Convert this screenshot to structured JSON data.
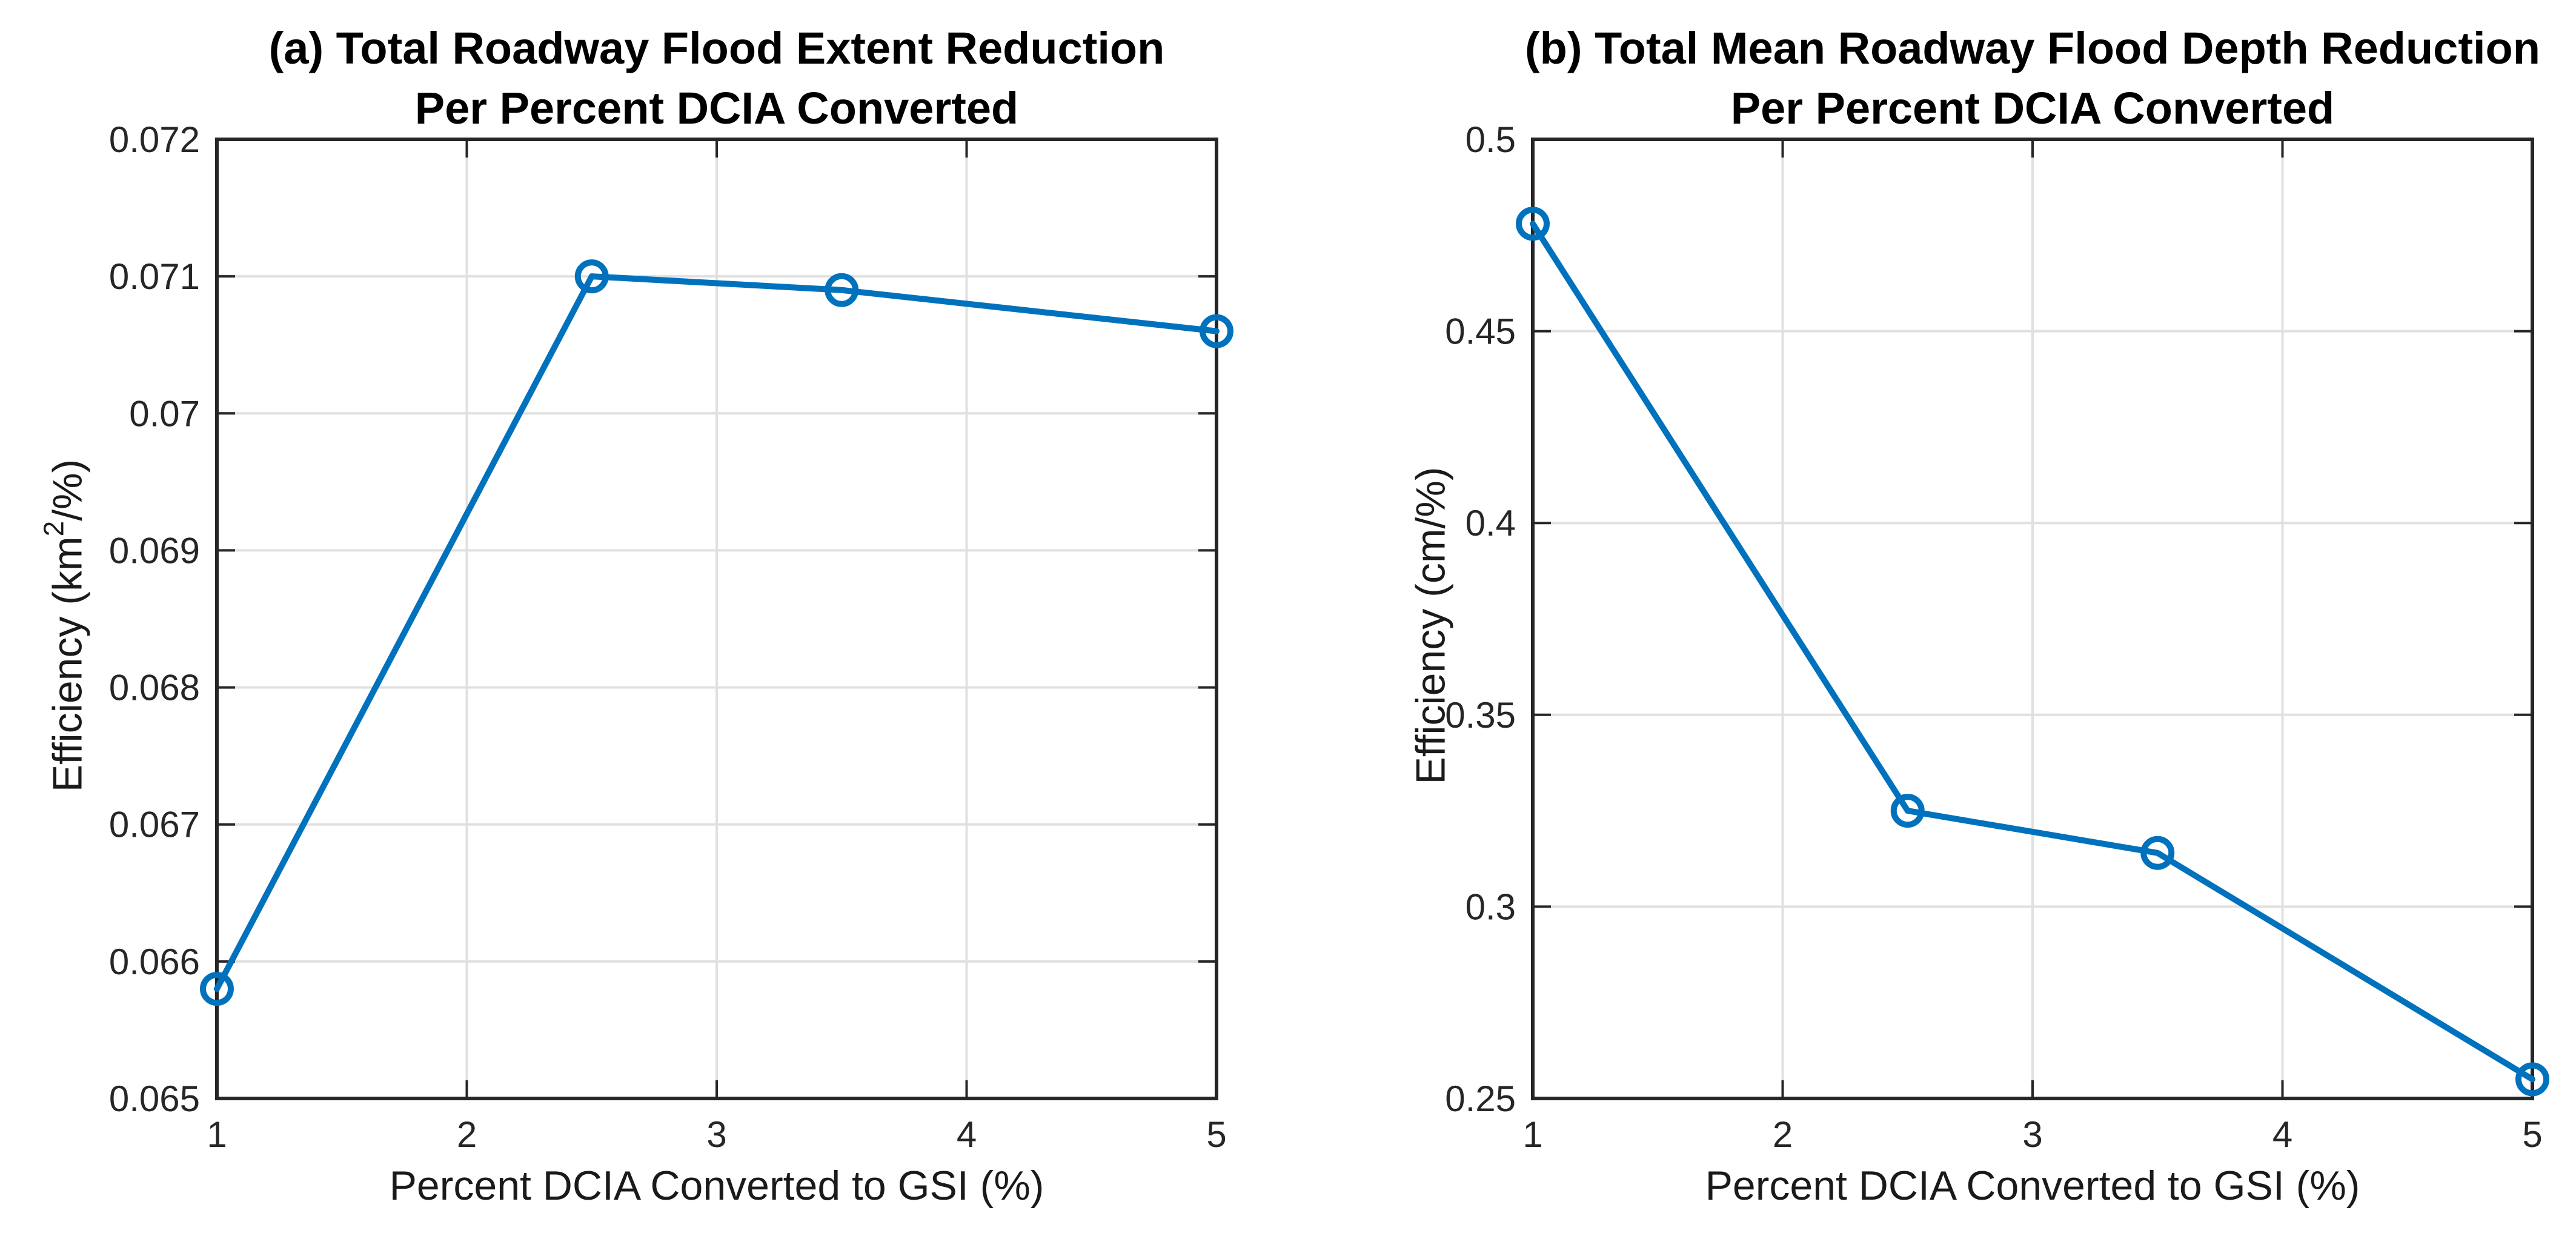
{
  "figure": {
    "background": "#ffffff",
    "accent_color": "#0072BD",
    "axis_color": "#262626",
    "grid_color": "#e0e0e0",
    "title_color": "#000000"
  },
  "chart_data": [
    {
      "id": "a",
      "type": "line",
      "title_line1": "(a) Total Roadway Flood Extent Reduction",
      "title_line2": "Per Percent DCIA Converted",
      "xlabel": "Percent DCIA Converted to GSI (%)",
      "ylabel_pre": "Efficiency (km",
      "ylabel_sup": "2",
      "ylabel_post": "/%)",
      "x": [
        1,
        2.5,
        3.5,
        5
      ],
      "y": [
        0.0658,
        0.071,
        0.0709,
        0.0706
      ],
      "xlim": [
        1,
        5
      ],
      "ylim": [
        0.065,
        0.072
      ],
      "xticks": [
        1,
        2,
        3,
        4,
        5
      ],
      "xtick_labels": [
        "1",
        "2",
        "3",
        "4",
        "5"
      ],
      "yticks": [
        0.065,
        0.066,
        0.067,
        0.068,
        0.069,
        0.07,
        0.071,
        0.072
      ],
      "ytick_labels": [
        "0.065",
        "0.066",
        "0.067",
        "0.068",
        "0.069",
        "0.07",
        "0.071",
        "0.072"
      ],
      "grid": true,
      "legend": null,
      "marker": "open-circle"
    },
    {
      "id": "b",
      "type": "line",
      "title_line1": "(b) Total Mean Roadway Flood Depth Reduction",
      "title_line2": "Per Percent DCIA Converted",
      "xlabel": "Percent DCIA Converted to GSI (%)",
      "ylabel_pre": "Efficiency (cm/%)",
      "ylabel_sup": "",
      "ylabel_post": "",
      "x": [
        1,
        2.5,
        3.5,
        5
      ],
      "y": [
        0.478,
        0.325,
        0.314,
        0.255
      ],
      "xlim": [
        1,
        5
      ],
      "ylim": [
        0.25,
        0.5
      ],
      "xticks": [
        1,
        2,
        3,
        4,
        5
      ],
      "xtick_labels": [
        "1",
        "2",
        "3",
        "4",
        "5"
      ],
      "yticks": [
        0.25,
        0.3,
        0.35,
        0.4,
        0.45,
        0.5
      ],
      "ytick_labels": [
        "0.25",
        "0.3",
        "0.35",
        "0.4",
        "0.45",
        "0.5"
      ],
      "grid": true,
      "legend": null,
      "marker": "open-circle"
    }
  ]
}
